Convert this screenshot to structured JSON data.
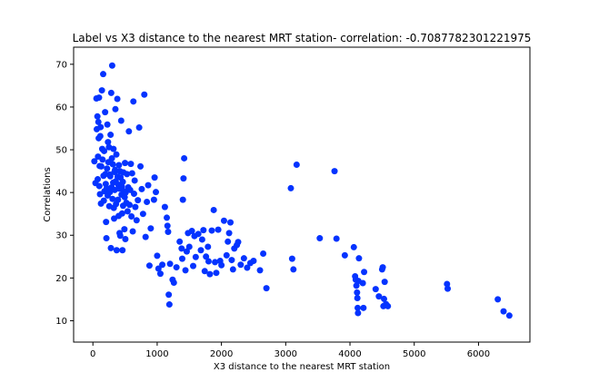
{
  "chart_data": {
    "type": "scatter",
    "title": "Label vs X3 distance to the nearest MRT station- correlation: -0.7087782301221975",
    "xlabel": "X3 distance to the nearest MRT station",
    "ylabel": "Correlations",
    "xlim": [
      -300,
      6800
    ],
    "ylim": [
      5,
      74
    ],
    "xticks": [
      0,
      1000,
      2000,
      3000,
      4000,
      5000,
      6000
    ],
    "yticks": [
      10,
      20,
      30,
      40,
      50,
      60,
      70
    ],
    "xtick_labels": [
      "0",
      "1000",
      "2000",
      "3000",
      "4000",
      "5000",
      "6000"
    ],
    "ytick_labels": [
      "10",
      "20",
      "30",
      "40",
      "50",
      "60",
      "70"
    ],
    "grid": false,
    "legend": "none",
    "marker_color": "#0433ff",
    "points": [
      [
        23,
        47.3
      ],
      [
        40,
        42.2
      ],
      [
        55,
        62
      ],
      [
        60,
        54.8
      ],
      [
        70,
        57.8
      ],
      [
        75,
        43.1
      ],
      [
        80,
        48.4
      ],
      [
        85,
        56.5
      ],
      [
        90,
        52.7
      ],
      [
        95,
        62.2
      ],
      [
        100,
        41.5
      ],
      [
        105,
        46.2
      ],
      [
        110,
        39.6
      ],
      [
        115,
        53.2
      ],
      [
        120,
        55.3
      ],
      [
        125,
        37.4
      ],
      [
        130,
        46.1
      ],
      [
        140,
        63.9
      ],
      [
        145,
        50.2
      ],
      [
        150,
        47.7
      ],
      [
        160,
        67.7
      ],
      [
        165,
        43.9
      ],
      [
        170,
        38.1
      ],
      [
        175,
        49.7
      ],
      [
        180,
        40.3
      ],
      [
        190,
        58.8
      ],
      [
        195,
        44.3
      ],
      [
        200,
        42.0
      ],
      [
        205,
        33.1
      ],
      [
        210,
        29.3
      ],
      [
        215,
        41.0
      ],
      [
        220,
        45.6
      ],
      [
        225,
        55.9
      ],
      [
        230,
        39.3
      ],
      [
        235,
        51.8
      ],
      [
        240,
        47.1
      ],
      [
        250,
        50.6
      ],
      [
        255,
        36.8
      ],
      [
        260,
        44.2
      ],
      [
        265,
        40.1
      ],
      [
        270,
        43.8
      ],
      [
        275,
        53.5
      ],
      [
        280,
        27.0
      ],
      [
        285,
        63.3
      ],
      [
        290,
        41.2
      ],
      [
        295,
        48.0
      ],
      [
        300,
        69.7
      ],
      [
        305,
        38.5
      ],
      [
        310,
        46.6
      ],
      [
        315,
        42.3
      ],
      [
        320,
        50.2
      ],
      [
        325,
        36.4
      ],
      [
        330,
        33.9
      ],
      [
        335,
        44.8
      ],
      [
        340,
        40.6
      ],
      [
        345,
        45.3
      ],
      [
        350,
        59.5
      ],
      [
        355,
        42.6
      ],
      [
        360,
        37.3
      ],
      [
        365,
        48.9
      ],
      [
        370,
        26.5
      ],
      [
        380,
        61.9
      ],
      [
        385,
        43.7
      ],
      [
        390,
        38.3
      ],
      [
        395,
        41.8
      ],
      [
        400,
        34.5
      ],
      [
        405,
        46.4
      ],
      [
        410,
        40.9
      ],
      [
        415,
        30.5
      ],
      [
        420,
        45.0
      ],
      [
        425,
        29.9
      ],
      [
        430,
        43.5
      ],
      [
        440,
        56.8
      ],
      [
        445,
        39.5
      ],
      [
        450,
        41.4
      ],
      [
        455,
        35.1
      ],
      [
        460,
        26.5
      ],
      [
        465,
        42.5
      ],
      [
        470,
        36.9
      ],
      [
        475,
        44.7
      ],
      [
        480,
        40.3
      ],
      [
        490,
        31.4
      ],
      [
        495,
        38.9
      ],
      [
        500,
        46.9
      ],
      [
        505,
        29.1
      ],
      [
        510,
        40.0
      ],
      [
        520,
        37.6
      ],
      [
        530,
        44.3
      ],
      [
        540,
        35.6
      ],
      [
        550,
        41.2
      ],
      [
        560,
        54.3
      ],
      [
        570,
        37.1
      ],
      [
        580,
        40.6
      ],
      [
        590,
        46.7
      ],
      [
        600,
        34.4
      ],
      [
        610,
        44.5
      ],
      [
        620,
        30.9
      ],
      [
        630,
        61.3
      ],
      [
        640,
        39.7
      ],
      [
        650,
        42.8
      ],
      [
        660,
        36.6
      ],
      [
        680,
        33.5
      ],
      [
        700,
        38.2
      ],
      [
        720,
        55.2
      ],
      [
        740,
        46.1
      ],
      [
        760,
        40.8
      ],
      [
        780,
        35.0
      ],
      [
        800,
        62.9
      ],
      [
        820,
        29.6
      ],
      [
        840,
        37.8
      ],
      [
        860,
        41.7
      ],
      [
        880,
        22.9
      ],
      [
        900,
        31.6
      ],
      [
        950,
        38.3
      ],
      [
        960,
        43.5
      ],
      [
        980,
        40.1
      ],
      [
        1000,
        25.2
      ],
      [
        1020,
        22.2
      ],
      [
        1050,
        21.0
      ],
      [
        1080,
        23.1
      ],
      [
        1120,
        36.6
      ],
      [
        1150,
        34.1
      ],
      [
        1160,
        32.2
      ],
      [
        1170,
        30.8
      ],
      [
        1180,
        16.1
      ],
      [
        1190,
        13.8
      ],
      [
        1200,
        23.3
      ],
      [
        1240,
        19.6
      ],
      [
        1260,
        18.9
      ],
      [
        1300,
        22.5
      ],
      [
        1350,
        28.5
      ],
      [
        1380,
        26.9
      ],
      [
        1390,
        24.5
      ],
      [
        1400,
        38.3
      ],
      [
        1410,
        43.3
      ],
      [
        1420,
        48.0
      ],
      [
        1440,
        21.8
      ],
      [
        1460,
        26.2
      ],
      [
        1480,
        30.5
      ],
      [
        1500,
        27.3
      ],
      [
        1540,
        31.0
      ],
      [
        1560,
        22.8
      ],
      [
        1580,
        29.8
      ],
      [
        1600,
        24.9
      ],
      [
        1640,
        30.3
      ],
      [
        1680,
        26.5
      ],
      [
        1700,
        29.0
      ],
      [
        1720,
        31.2
      ],
      [
        1740,
        21.6
      ],
      [
        1760,
        25.0
      ],
      [
        1790,
        27.3
      ],
      [
        1800,
        23.9
      ],
      [
        1820,
        20.9
      ],
      [
        1850,
        31.1
      ],
      [
        1880,
        35.9
      ],
      [
        1900,
        23.7
      ],
      [
        1920,
        21.2
      ],
      [
        1950,
        31.3
      ],
      [
        1980,
        24.0
      ],
      [
        2000,
        23.0
      ],
      [
        2040,
        33.4
      ],
      [
        2080,
        25.3
      ],
      [
        2100,
        28.5
      ],
      [
        2120,
        30.5
      ],
      [
        2140,
        33.0
      ],
      [
        2160,
        24.2
      ],
      [
        2180,
        22.0
      ],
      [
        2200,
        26.9
      ],
      [
        2240,
        27.7
      ],
      [
        2260,
        28.4
      ],
      [
        2300,
        23.1
      ],
      [
        2350,
        24.6
      ],
      [
        2400,
        22.4
      ],
      [
        2450,
        23.5
      ],
      [
        2500,
        24.0
      ],
      [
        2600,
        21.8
      ],
      [
        2650,
        25.7
      ],
      [
        2700,
        17.6
      ],
      [
        3080,
        41.0
      ],
      [
        3100,
        24.5
      ],
      [
        3120,
        22.0
      ],
      [
        3170,
        46.5
      ],
      [
        3530,
        29.3
      ],
      [
        3760,
        45.0
      ],
      [
        3790,
        29.2
      ],
      [
        3920,
        25.3
      ],
      [
        4060,
        27.2
      ],
      [
        4080,
        20.4
      ],
      [
        4090,
        19.6
      ],
      [
        4100,
        18.2
      ],
      [
        4110,
        16.6
      ],
      [
        4115,
        15.3
      ],
      [
        4120,
        13.0
      ],
      [
        4125,
        11.8
      ],
      [
        4130,
        19.3
      ],
      [
        4140,
        24.6
      ],
      [
        4200,
        18.8
      ],
      [
        4210,
        13.0
      ],
      [
        4220,
        21.4
      ],
      [
        4400,
        17.4
      ],
      [
        4450,
        15.7
      ],
      [
        4500,
        22.0
      ],
      [
        4510,
        22.5
      ],
      [
        4520,
        13.4
      ],
      [
        4530,
        15.1
      ],
      [
        4540,
        19.1
      ],
      [
        4560,
        13.9
      ],
      [
        4590,
        13.4
      ],
      [
        5510,
        18.6
      ],
      [
        5520,
        17.5
      ],
      [
        6300,
        15.0
      ],
      [
        6390,
        12.2
      ],
      [
        6480,
        11.2
      ]
    ]
  }
}
